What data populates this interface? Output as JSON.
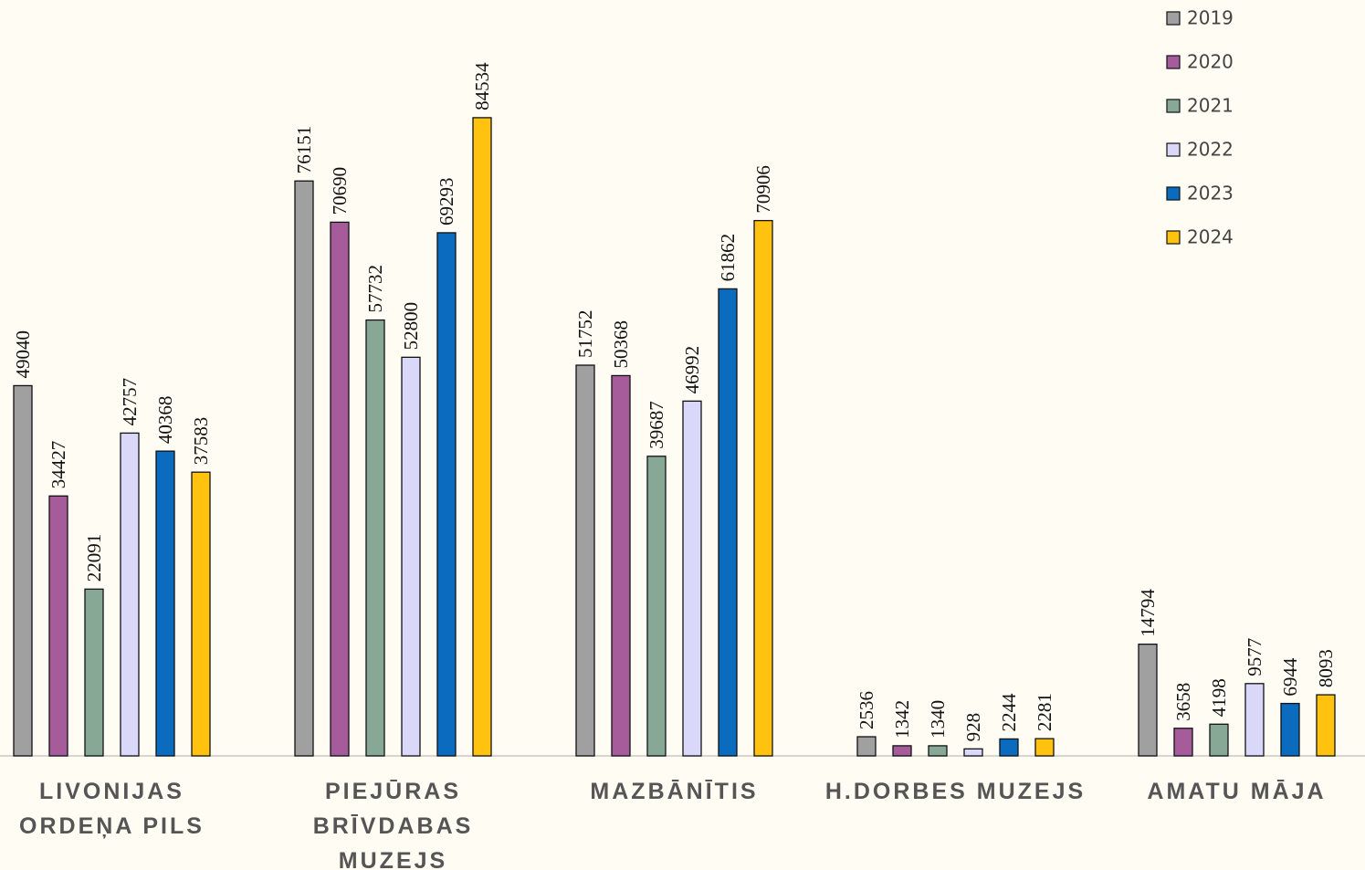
{
  "chart_data": {
    "type": "bar",
    "categories": [
      "LIVONIJAS ORDEŅA PILS",
      "PIEJŪRAS BRĪVDABAS MUZEJS",
      "MAZBĀNĪTIS",
      "H.DORBES MUZEJS",
      "AMATU MĀJA"
    ],
    "series": [
      {
        "name": "2019",
        "color": "#a0a0a0",
        "values": [
          49040,
          76151,
          51752,
          2536,
          14794
        ]
      },
      {
        "name": "2020",
        "color": "#a65c9a",
        "values": [
          34427,
          70690,
          50368,
          1342,
          3658
        ]
      },
      {
        "name": "2021",
        "color": "#88a896",
        "values": [
          22091,
          57732,
          39687,
          1340,
          4198
        ]
      },
      {
        "name": "2022",
        "color": "#d9d8f8",
        "values": [
          42757,
          52800,
          46992,
          928,
          9577
        ]
      },
      {
        "name": "2023",
        "color": "#0a6bbf",
        "values": [
          40368,
          69293,
          61862,
          2244,
          6944
        ]
      },
      {
        "name": "2024",
        "color": "#ffc20e",
        "values": [
          37583,
          84534,
          70906,
          2281,
          8093
        ]
      }
    ],
    "ylim": [
      0,
      100000
    ],
    "legend": "top-right"
  }
}
